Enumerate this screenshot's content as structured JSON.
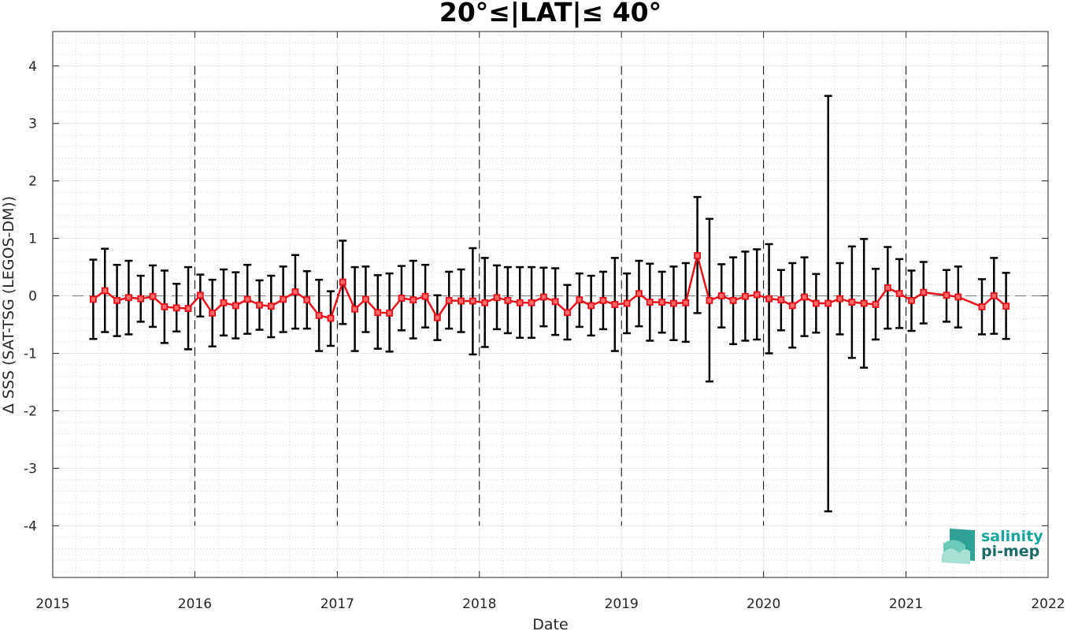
{
  "chart_data": {
    "type": "line",
    "title": "20°≤|LAT|≤ 40°",
    "xlabel": "Date",
    "ylabel": "Δ SSS (SAT-TSG (LEGOS-DM))",
    "xlim": [
      "2015-01-01",
      "2022-01-01"
    ],
    "ylim": [
      -4.9,
      4.6
    ],
    "x_ticks": [
      "2015",
      "2016",
      "2017",
      "2018",
      "2019",
      "2020",
      "2021",
      "2022"
    ],
    "y_ticks": [
      4,
      3,
      2,
      1,
      0,
      -1,
      -2,
      -3,
      -4
    ],
    "grid": true,
    "reference_line": 0,
    "year_dividers": [
      "2016",
      "2017",
      "2018",
      "2019",
      "2020",
      "2021"
    ],
    "colors": {
      "mean": "#e8101a",
      "error_bar": "#000000",
      "reference": "#808080"
    },
    "series": [
      {
        "x": [
          "2015-04-15",
          "2015-05-15",
          "2015-06-15",
          "2015-07-15",
          "2015-08-15",
          "2015-09-15",
          "2015-10-15",
          "2015-11-15",
          "2015-12-15",
          "2016-01-15",
          "2016-02-15",
          "2016-03-15",
          "2016-04-15",
          "2016-05-15",
          "2016-06-15",
          "2016-07-15",
          "2016-08-15",
          "2016-09-15",
          "2016-10-15",
          "2016-11-15",
          "2016-12-15",
          "2017-01-15",
          "2017-02-15",
          "2017-03-15",
          "2017-04-15",
          "2017-05-15",
          "2017-06-15",
          "2017-07-15",
          "2017-08-15",
          "2017-09-15",
          "2017-10-15",
          "2017-11-15",
          "2017-12-15",
          "2018-01-15",
          "2018-02-15",
          "2018-03-15",
          "2018-04-15",
          "2018-05-15",
          "2018-06-15",
          "2018-07-15",
          "2018-08-15",
          "2018-09-15",
          "2018-10-15",
          "2018-11-15",
          "2018-12-15",
          "2019-01-15",
          "2019-02-15",
          "2019-03-15",
          "2019-04-15",
          "2019-05-15",
          "2019-06-15",
          "2019-07-15",
          "2019-08-15",
          "2019-09-15",
          "2019-10-15",
          "2019-11-15",
          "2019-12-15",
          "2020-01-15",
          "2020-02-15",
          "2020-03-15",
          "2020-04-15",
          "2020-05-15",
          "2020-06-15",
          "2020-07-15",
          "2020-08-15",
          "2020-09-15",
          "2020-10-15",
          "2020-11-15",
          "2020-12-15",
          "2021-01-15",
          "2021-02-15",
          "2021-04-15",
          "2021-05-15",
          "2021-07-15",
          "2021-08-15",
          "2021-09-15"
        ],
        "y": [
          -0.06,
          0.09,
          -0.08,
          -0.03,
          -0.05,
          -0.01,
          -0.19,
          -0.21,
          -0.22,
          0.01,
          -0.3,
          -0.12,
          -0.17,
          -0.06,
          -0.16,
          -0.18,
          -0.06,
          0.07,
          -0.07,
          -0.34,
          -0.39,
          0.24,
          -0.23,
          -0.06,
          -0.29,
          -0.3,
          -0.04,
          -0.07,
          -0.01,
          -0.38,
          -0.08,
          -0.09,
          -0.09,
          -0.12,
          -0.03,
          -0.08,
          -0.12,
          -0.12,
          -0.02,
          -0.1,
          -0.29,
          -0.07,
          -0.17,
          -0.08,
          -0.15,
          -0.13,
          0.04,
          -0.11,
          -0.11,
          -0.13,
          -0.12,
          0.7,
          -0.08,
          0.0,
          -0.08,
          -0.01,
          0.02,
          -0.05,
          -0.07,
          -0.17,
          -0.02,
          -0.13,
          -0.13,
          -0.05,
          -0.11,
          -0.13,
          -0.15,
          0.14,
          0.04,
          -0.08,
          0.06,
          0.01,
          -0.02,
          -0.19,
          0.0,
          -0.18
        ],
        "upper": [
          0.63,
          0.82,
          0.54,
          0.61,
          0.35,
          0.53,
          0.44,
          0.21,
          0.5,
          0.37,
          0.28,
          0.46,
          0.41,
          0.54,
          0.27,
          0.35,
          0.51,
          0.71,
          0.43,
          0.28,
          0.08,
          0.96,
          0.5,
          0.51,
          0.36,
          0.39,
          0.52,
          0.61,
          0.54,
          0.01,
          0.42,
          0.46,
          0.83,
          0.66,
          0.53,
          0.5,
          0.5,
          0.5,
          0.49,
          0.48,
          0.19,
          0.39,
          0.35,
          0.42,
          0.66,
          0.39,
          0.61,
          0.56,
          0.42,
          0.51,
          0.57,
          1.72,
          1.34,
          0.55,
          0.67,
          0.77,
          0.81,
          0.9,
          0.45,
          0.57,
          0.67,
          0.38,
          3.48,
          0.57,
          0.86,
          0.99,
          0.47,
          0.85,
          0.64,
          0.44,
          0.59,
          0.45,
          0.51,
          0.29,
          0.66,
          0.4
        ],
        "lower": [
          -0.75,
          -0.63,
          -0.7,
          -0.67,
          -0.45,
          -0.54,
          -0.82,
          -0.62,
          -0.93,
          -0.36,
          -0.88,
          -0.69,
          -0.74,
          -0.66,
          -0.59,
          -0.72,
          -0.63,
          -0.57,
          -0.57,
          -0.96,
          -0.87,
          -0.49,
          -0.96,
          -0.63,
          -0.92,
          -0.97,
          -0.6,
          -0.74,
          -0.55,
          -0.77,
          -0.57,
          -0.63,
          -1.02,
          -0.89,
          -0.58,
          -0.65,
          -0.73,
          -0.73,
          -0.53,
          -0.68,
          -0.76,
          -0.54,
          -0.69,
          -0.58,
          -0.96,
          -0.65,
          -0.53,
          -0.78,
          -0.64,
          -0.77,
          -0.8,
          -0.3,
          -1.49,
          -0.55,
          -0.84,
          -0.78,
          -0.76,
          -1.0,
          -0.6,
          -0.9,
          -0.7,
          -0.64,
          -3.75,
          -0.67,
          -1.08,
          -1.25,
          -0.76,
          -0.57,
          -0.56,
          -0.61,
          -0.48,
          -0.45,
          -0.55,
          -0.67,
          -0.66,
          -0.75
        ]
      }
    ]
  },
  "logo": {
    "line1": "salinity",
    "line2": "pi-mep",
    "color1": "#1aa59c",
    "color2": "#1a6b66"
  }
}
